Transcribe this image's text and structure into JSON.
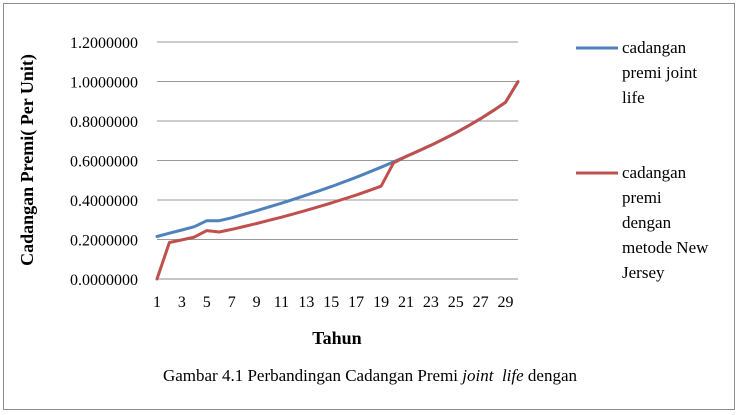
{
  "chart_data": {
    "type": "line",
    "title": "",
    "xlabel": "Tahun",
    "ylabel": "Cadangan Premi( Per  Unit)",
    "x": [
      1,
      2,
      3,
      4,
      5,
      6,
      7,
      8,
      9,
      10,
      11,
      12,
      13,
      14,
      15,
      16,
      17,
      18,
      19,
      20,
      21,
      22,
      23,
      24,
      25,
      26,
      27,
      28,
      29,
      30
    ],
    "x_tick_labels": [
      "1",
      "3",
      "5",
      "7",
      "9",
      "11",
      "13",
      "15",
      "17",
      "19",
      "21",
      "23",
      "25",
      "27",
      "29"
    ],
    "y_tick_labels": [
      "0.0000000",
      "0.2000000",
      "0.4000000",
      "0.6000000",
      "0.8000000",
      "1.0000000",
      "1.2000000"
    ],
    "ylim": [
      0,
      1.2
    ],
    "grid": "horizontal",
    "legend_position": "right",
    "series": [
      {
        "name": "cadangan premi joint life",
        "color": "#4f81bd",
        "values": [
          0.215,
          0.232,
          0.248,
          0.265,
          0.295,
          0.295,
          0.31,
          0.328,
          0.346,
          0.365,
          0.384,
          0.404,
          0.425,
          0.446,
          0.468,
          0.491,
          0.515,
          0.54,
          0.566,
          0.593,
          0.62,
          0.648,
          0.677,
          0.708,
          0.74,
          0.775,
          0.812,
          0.852,
          0.895,
          0.999
        ]
      },
      {
        "name": "cadangan premi dengan metode New Jersey",
        "color": "#c0504d",
        "values": [
          0.0,
          0.185,
          0.198,
          0.212,
          0.245,
          0.238,
          0.251,
          0.266,
          0.281,
          0.297,
          0.313,
          0.33,
          0.348,
          0.366,
          0.385,
          0.405,
          0.425,
          0.447,
          0.47,
          0.588,
          0.62,
          0.648,
          0.677,
          0.708,
          0.74,
          0.775,
          0.812,
          0.852,
          0.895,
          0.999
        ]
      }
    ]
  },
  "legend": {
    "series1_lines": [
      "cadangan",
      "premi joint",
      "life"
    ],
    "series2_lines": [
      "cadangan",
      "premi",
      "dengan",
      "metode New",
      "Jersey"
    ]
  },
  "caption": {
    "part1": "Gambar 4.1 Perbandingan Cadangan Premi ",
    "part2": "joint  life",
    "part3": " dengan"
  }
}
